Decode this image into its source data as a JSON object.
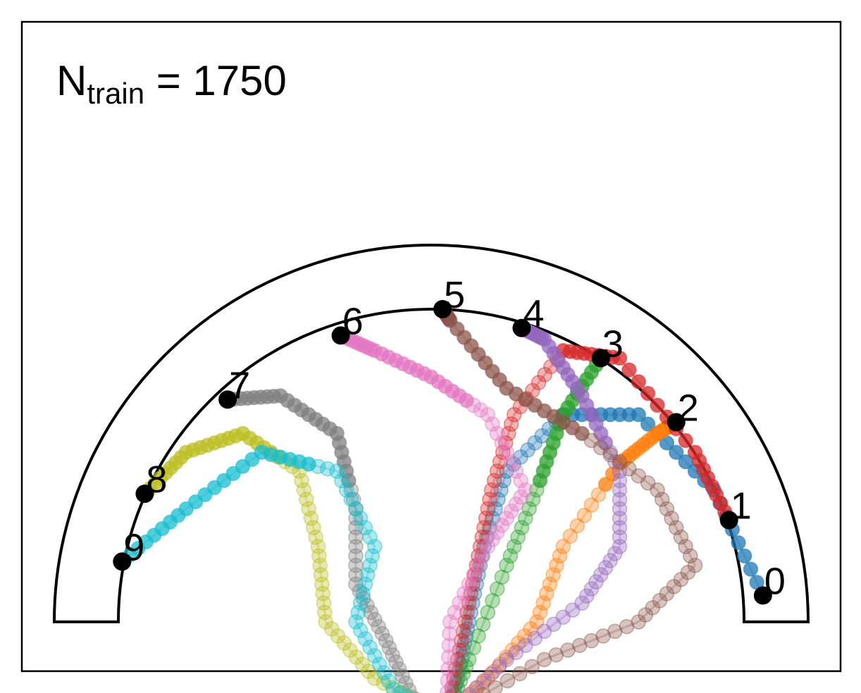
{
  "chart_data": {
    "type": "scatter",
    "annotation": {
      "label_main": "N",
      "label_sub": "train",
      "label_rest": " = 1750"
    },
    "arena": {
      "outer_radius": 1.0,
      "inner_radius": 0.83,
      "center": [
        0,
        0
      ]
    },
    "grid": false,
    "legend": "none",
    "colors": [
      "#1f77b4",
      "#ff7f0e",
      "#2ca02c",
      "#d62728",
      "#9467bd",
      "#8c564b",
      "#e377c2",
      "#7f7f7f",
      "#bcbd22",
      "#17becf"
    ],
    "start": [
      0.04,
      -0.25
    ],
    "targets": [
      {
        "label": "0",
        "x": 0.88,
        "y": 0.07
      },
      {
        "label": "1",
        "x": 0.79,
        "y": 0.27
      },
      {
        "label": "2",
        "x": 0.65,
        "y": 0.53
      },
      {
        "label": "3",
        "x": 0.45,
        "y": 0.7
      },
      {
        "label": "4",
        "x": 0.24,
        "y": 0.78
      },
      {
        "label": "5",
        "x": 0.03,
        "y": 0.83
      },
      {
        "label": "6",
        "x": -0.24,
        "y": 0.76
      },
      {
        "label": "7",
        "x": -0.54,
        "y": 0.59
      },
      {
        "label": "8",
        "x": -0.76,
        "y": 0.34
      },
      {
        "label": "9",
        "x": -0.82,
        "y": 0.16
      }
    ],
    "trajectories": [
      {
        "color": 0,
        "points": [
          [
            0.04,
            -0.25
          ],
          [
            0.07,
            -0.15
          ],
          [
            0.1,
            0.0
          ],
          [
            0.14,
            0.2
          ],
          [
            0.2,
            0.4
          ],
          [
            0.35,
            0.55
          ],
          [
            0.55,
            0.55
          ],
          [
            0.75,
            0.35
          ],
          [
            0.88,
            0.07
          ]
        ]
      },
      {
        "color": 1,
        "points": [
          [
            0.04,
            -0.25
          ],
          [
            0.15,
            -0.15
          ],
          [
            0.28,
            0.0
          ],
          [
            0.35,
            0.2
          ],
          [
            0.5,
            0.42
          ],
          [
            0.6,
            0.5
          ],
          [
            0.65,
            0.53
          ]
        ]
      },
      {
        "color": 2,
        "points": [
          [
            0.04,
            -0.25
          ],
          [
            0.1,
            -0.1
          ],
          [
            0.2,
            0.15
          ],
          [
            0.28,
            0.35
          ],
          [
            0.35,
            0.55
          ],
          [
            0.45,
            0.7
          ]
        ]
      },
      {
        "color": 3,
        "points": [
          [
            0.04,
            -0.25
          ],
          [
            0.08,
            -0.05
          ],
          [
            0.12,
            0.15
          ],
          [
            0.16,
            0.35
          ],
          [
            0.22,
            0.55
          ],
          [
            0.35,
            0.72
          ],
          [
            0.5,
            0.7
          ],
          [
            0.7,
            0.45
          ],
          [
            0.79,
            0.27
          ]
        ]
      },
      {
        "color": 4,
        "points": [
          [
            0.04,
            -0.25
          ],
          [
            0.2,
            -0.1
          ],
          [
            0.4,
            0.05
          ],
          [
            0.5,
            0.2
          ],
          [
            0.5,
            0.4
          ],
          [
            0.4,
            0.6
          ],
          [
            0.3,
            0.75
          ],
          [
            0.24,
            0.78
          ]
        ]
      },
      {
        "color": 5,
        "points": [
          [
            0.04,
            -0.25
          ],
          [
            0.3,
            -0.1
          ],
          [
            0.55,
            0.0
          ],
          [
            0.7,
            0.15
          ],
          [
            0.6,
            0.35
          ],
          [
            0.4,
            0.5
          ],
          [
            0.2,
            0.62
          ],
          [
            0.05,
            0.8
          ],
          [
            0.03,
            0.83
          ]
        ]
      },
      {
        "color": 6,
        "points": [
          [
            0.04,
            -0.25
          ],
          [
            0.05,
            0.0
          ],
          [
            0.15,
            0.2
          ],
          [
            0.25,
            0.35
          ],
          [
            0.15,
            0.55
          ],
          [
            0.0,
            0.65
          ],
          [
            -0.15,
            0.72
          ],
          [
            -0.24,
            0.76
          ]
        ]
      },
      {
        "color": 7,
        "points": [
          [
            0.04,
            -0.25
          ],
          [
            -0.05,
            -0.2
          ],
          [
            -0.12,
            -0.05
          ],
          [
            -0.2,
            0.1
          ],
          [
            -0.2,
            0.3
          ],
          [
            -0.25,
            0.5
          ],
          [
            -0.4,
            0.6
          ],
          [
            -0.54,
            0.59
          ]
        ]
      },
      {
        "color": 8,
        "points": [
          [
            0.04,
            -0.25
          ],
          [
            -0.15,
            -0.15
          ],
          [
            -0.28,
            0.0
          ],
          [
            -0.3,
            0.2
          ],
          [
            -0.35,
            0.4
          ],
          [
            -0.5,
            0.5
          ],
          [
            -0.65,
            0.45
          ],
          [
            -0.76,
            0.34
          ]
        ]
      },
      {
        "color": 9,
        "points": [
          [
            0.04,
            -0.25
          ],
          [
            -0.1,
            -0.18
          ],
          [
            -0.2,
            0.0
          ],
          [
            -0.15,
            0.2
          ],
          [
            -0.25,
            0.4
          ],
          [
            -0.45,
            0.45
          ],
          [
            -0.65,
            0.3
          ],
          [
            -0.82,
            0.16
          ]
        ]
      }
    ]
  }
}
